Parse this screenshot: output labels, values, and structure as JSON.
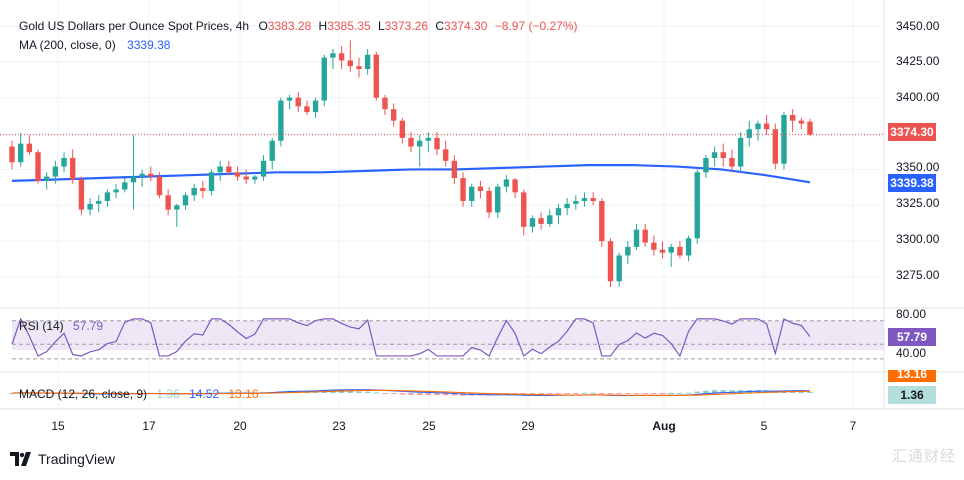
{
  "header": {
    "title": "Gold US Dollars per Ounce Spot Prices, 4h",
    "o_label": "O",
    "o_value": "3383.28",
    "h_label": "H",
    "h_value": "3385.35",
    "l_label": "L",
    "l_value": "3373.26",
    "c_label": "C",
    "c_value": "3374.30",
    "change": "−8.97 (−0.27%)"
  },
  "ma_legend": {
    "label": "MA (200, close, 0)",
    "value": "3339.38"
  },
  "rsi_legend": {
    "label": "RSI (14)",
    "value": "57.79"
  },
  "macd_legend": {
    "label": "MACD (12, 26, close, 9)",
    "hist": "1.36",
    "macd": "14.52",
    "signal": "13.16"
  },
  "price_axis": [
    "3450.00",
    "3425.00",
    "3400.00",
    "3374.30",
    "3350.00",
    "3339.38",
    "3325.00",
    "3300.00",
    "3275.00"
  ],
  "rsi_axis": [
    "80.00",
    "57.79",
    "40.00"
  ],
  "macd_axis": {
    "signal_badge": "13.16",
    "hist_badge": "1.36"
  },
  "date_axis": [
    "15",
    "17",
    "20",
    "23",
    "25",
    "29",
    "Aug",
    "5",
    "7"
  ],
  "footer": {
    "brand": "TradingView"
  },
  "watermark": "汇通财经",
  "colors": {
    "up": "#26a69a",
    "down": "#ef5350",
    "ma": "#2962ff",
    "rsi": "#7e57c2",
    "rsi_band": "#ede7f6",
    "macd": "#2962ff",
    "signal": "#ff6d00",
    "last_price": "#ef5350",
    "ma_badge": "#2962ff",
    "rsi_badge": "#7e57c2",
    "signal_badge": "#ff6d00",
    "hist_badge_bg": "#b2dfdb"
  },
  "chart_data": {
    "type": "candlestick",
    "symbol": "Gold US Dollars per Ounce Spot Prices",
    "interval": "4h",
    "ylim": [
      3262,
      3462
    ],
    "x_ticks": [
      "15",
      "17",
      "20",
      "23",
      "25",
      "29",
      "Aug",
      "5",
      "7"
    ],
    "last_price": 3374.3,
    "candles_ohlc": [
      [
        3366,
        3370,
        3350,
        3355
      ],
      [
        3355,
        3375,
        3352,
        3368
      ],
      [
        3368,
        3374,
        3360,
        3362
      ],
      [
        3362,
        3364,
        3340,
        3342
      ],
      [
        3342,
        3348,
        3336,
        3345
      ],
      [
        3345,
        3356,
        3340,
        3352
      ],
      [
        3352,
        3362,
        3348,
        3358
      ],
      [
        3358,
        3364,
        3340,
        3343
      ],
      [
        3343,
        3345,
        3318,
        3322
      ],
      [
        3322,
        3330,
        3318,
        3326
      ],
      [
        3326,
        3332,
        3320,
        3328
      ],
      [
        3328,
        3336,
        3324,
        3334
      ],
      [
        3334,
        3340,
        3330,
        3336
      ],
      [
        3336,
        3344,
        3334,
        3341
      ],
      [
        3341,
        3374,
        3322,
        3345
      ],
      [
        3345,
        3350,
        3338,
        3347
      ],
      [
        3347,
        3352,
        3342,
        3345
      ],
      [
        3345,
        3348,
        3330,
        3332
      ],
      [
        3332,
        3336,
        3318,
        3322
      ],
      [
        3322,
        3326,
        3310,
        3325
      ],
      [
        3325,
        3334,
        3322,
        3332
      ],
      [
        3332,
        3340,
        3328,
        3337
      ],
      [
        3337,
        3342,
        3330,
        3335
      ],
      [
        3335,
        3350,
        3332,
        3348
      ],
      [
        3348,
        3356,
        3342,
        3352
      ],
      [
        3352,
        3356,
        3346,
        3348
      ],
      [
        3348,
        3352,
        3342,
        3345
      ],
      [
        3345,
        3350,
        3340,
        3343
      ],
      [
        3343,
        3346,
        3340,
        3345
      ],
      [
        3345,
        3360,
        3342,
        3356
      ],
      [
        3356,
        3372,
        3350,
        3370
      ],
      [
        3370,
        3400,
        3366,
        3398
      ],
      [
        3398,
        3402,
        3392,
        3400
      ],
      [
        3400,
        3404,
        3390,
        3394
      ],
      [
        3394,
        3398,
        3388,
        3390
      ],
      [
        3390,
        3400,
        3386,
        3398
      ],
      [
        3398,
        3430,
        3394,
        3428
      ],
      [
        3428,
        3434,
        3420,
        3431
      ],
      [
        3431,
        3436,
        3420,
        3426
      ],
      [
        3426,
        3440,
        3418,
        3422
      ],
      [
        3422,
        3428,
        3414,
        3420
      ],
      [
        3420,
        3434,
        3416,
        3430
      ],
      [
        3430,
        3432,
        3398,
        3400
      ],
      [
        3400,
        3402,
        3388,
        3392
      ],
      [
        3392,
        3396,
        3380,
        3384
      ],
      [
        3384,
        3386,
        3368,
        3372
      ],
      [
        3372,
        3376,
        3362,
        3366
      ],
      [
        3366,
        3374,
        3352,
        3370
      ],
      [
        3370,
        3376,
        3362,
        3372
      ],
      [
        3372,
        3376,
        3360,
        3364
      ],
      [
        3364,
        3370,
        3352,
        3356
      ],
      [
        3356,
        3360,
        3340,
        3344
      ],
      [
        3344,
        3348,
        3324,
        3328
      ],
      [
        3328,
        3340,
        3324,
        3338
      ],
      [
        3338,
        3342,
        3330,
        3335
      ],
      [
        3335,
        3338,
        3316,
        3320
      ],
      [
        3320,
        3340,
        3316,
        3338
      ],
      [
        3338,
        3346,
        3334,
        3343
      ],
      [
        3343,
        3344,
        3330,
        3334
      ],
      [
        3334,
        3336,
        3304,
        3310
      ],
      [
        3310,
        3318,
        3306,
        3316
      ],
      [
        3316,
        3320,
        3308,
        3312
      ],
      [
        3312,
        3322,
        3310,
        3318
      ],
      [
        3318,
        3326,
        3312,
        3323
      ],
      [
        3323,
        3330,
        3318,
        3326
      ],
      [
        3326,
        3332,
        3322,
        3328
      ],
      [
        3328,
        3334,
        3324,
        3330
      ],
      [
        3330,
        3334,
        3325,
        3328
      ],
      [
        3328,
        3330,
        3296,
        3300
      ],
      [
        3300,
        3302,
        3268,
        3272
      ],
      [
        3272,
        3292,
        3268,
        3290
      ],
      [
        3290,
        3300,
        3284,
        3296
      ],
      [
        3296,
        3312,
        3294,
        3308
      ],
      [
        3308,
        3312,
        3296,
        3299
      ],
      [
        3299,
        3304,
        3290,
        3294
      ],
      [
        3294,
        3300,
        3288,
        3292
      ],
      [
        3292,
        3298,
        3282,
        3296
      ],
      [
        3296,
        3300,
        3288,
        3290
      ],
      [
        3290,
        3304,
        3286,
        3302
      ],
      [
        3302,
        3350,
        3298,
        3348
      ],
      [
        3348,
        3360,
        3344,
        3358
      ],
      [
        3358,
        3366,
        3352,
        3362
      ],
      [
        3362,
        3368,
        3352,
        3358
      ],
      [
        3358,
        3364,
        3348,
        3352
      ],
      [
        3352,
        3376,
        3348,
        3372
      ],
      [
        3372,
        3384,
        3366,
        3378
      ],
      [
        3378,
        3384,
        3370,
        3382
      ],
      [
        3382,
        3388,
        3374,
        3378
      ],
      [
        3378,
        3382,
        3350,
        3354
      ],
      [
        3354,
        3390,
        3350,
        3388
      ],
      [
        3388,
        3392,
        3376,
        3384
      ],
      [
        3384,
        3386,
        3378,
        3382
      ],
      [
        3383.28,
        3385.35,
        3373.26,
        3374.3
      ]
    ],
    "ma200": [
      3342,
      3343,
      3344,
      3345,
      3346,
      3347,
      3348,
      3348,
      3349,
      3350,
      3350,
      3351,
      3352,
      3353,
      3353,
      3352,
      3350,
      3346,
      3341
    ],
    "rsi": {
      "levels": [
        70,
        50,
        30
      ],
      "ylim": [
        20,
        80
      ],
      "last": 57.79
    },
    "macd": {
      "last_macd": 14.52,
      "last_signal": 13.16,
      "last_hist": 1.36
    }
  }
}
